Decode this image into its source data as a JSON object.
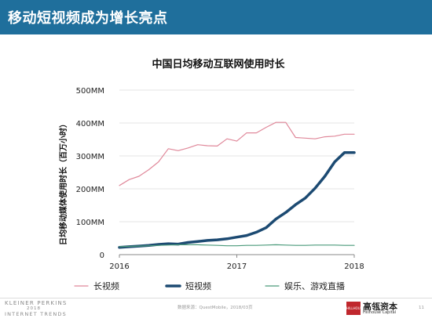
{
  "slide": {
    "title": "移动短视频成为增长亮点",
    "source_note": "数据来源：QuestMobile，2018/03页",
    "page_number": "11",
    "colors": {
      "header_bg": "#1f6f9c",
      "header_text": "#ffffff"
    }
  },
  "footer": {
    "kp_logo": {
      "name": "KLEINER PERKINS",
      "year": "2018",
      "subtitle": "INTERNET TRENDS"
    },
    "hillhouse_logo": {
      "badge": "HILLHOUSE",
      "name_cn": "高瓴资本",
      "name_en": "Hillhouse Capital"
    }
  },
  "chart_data": {
    "type": "line",
    "title": "中国日均移动互联网使用时长",
    "ylabel": "日均移动媒体使用时长（百万小时）",
    "xlabel": "",
    "x_tick_labels": [
      "2016",
      "2017",
      "2018"
    ],
    "x_ticks": [
      0,
      12,
      24
    ],
    "xlim": [
      0,
      24
    ],
    "y_tick_labels": [
      "0",
      "100MM",
      "200MM",
      "300MM",
      "400MM",
      "500MM"
    ],
    "y_ticks": [
      0,
      100,
      200,
      300,
      400,
      500
    ],
    "ylim": [
      0,
      500
    ],
    "grid": "horizontal",
    "legend_position": "bottom",
    "x": [
      0,
      1,
      2,
      3,
      4,
      5,
      6,
      7,
      8,
      9,
      10,
      11,
      12,
      13,
      14,
      15,
      16,
      17,
      18,
      19,
      20,
      21,
      22,
      23,
      24
    ],
    "series": [
      {
        "name": "长视频",
        "color": "#e0889a",
        "line_width": 1.2,
        "values": [
          210,
          228,
          238,
          258,
          282,
          322,
          316,
          324,
          334,
          331,
          330,
          352,
          345,
          370,
          370,
          387,
          402,
          402,
          356,
          354,
          352,
          358,
          360,
          366,
          366
        ]
      },
      {
        "name": "短视频",
        "color": "#1c4a72",
        "line_width": 3.5,
        "values": [
          22,
          24,
          26,
          28,
          31,
          33,
          32,
          37,
          40,
          43,
          45,
          48,
          53,
          58,
          68,
          82,
          108,
          128,
          152,
          172,
          202,
          238,
          282,
          310,
          310
        ]
      },
      {
        "name": "娱乐、游戏直播",
        "color": "#4a9a7a",
        "line_width": 1.2,
        "values": [
          24,
          25,
          26,
          27,
          28,
          29,
          30,
          30,
          30,
          29,
          28,
          27,
          27,
          28,
          28,
          29,
          30,
          29,
          28,
          28,
          29,
          29,
          29,
          28,
          28
        ]
      }
    ]
  }
}
